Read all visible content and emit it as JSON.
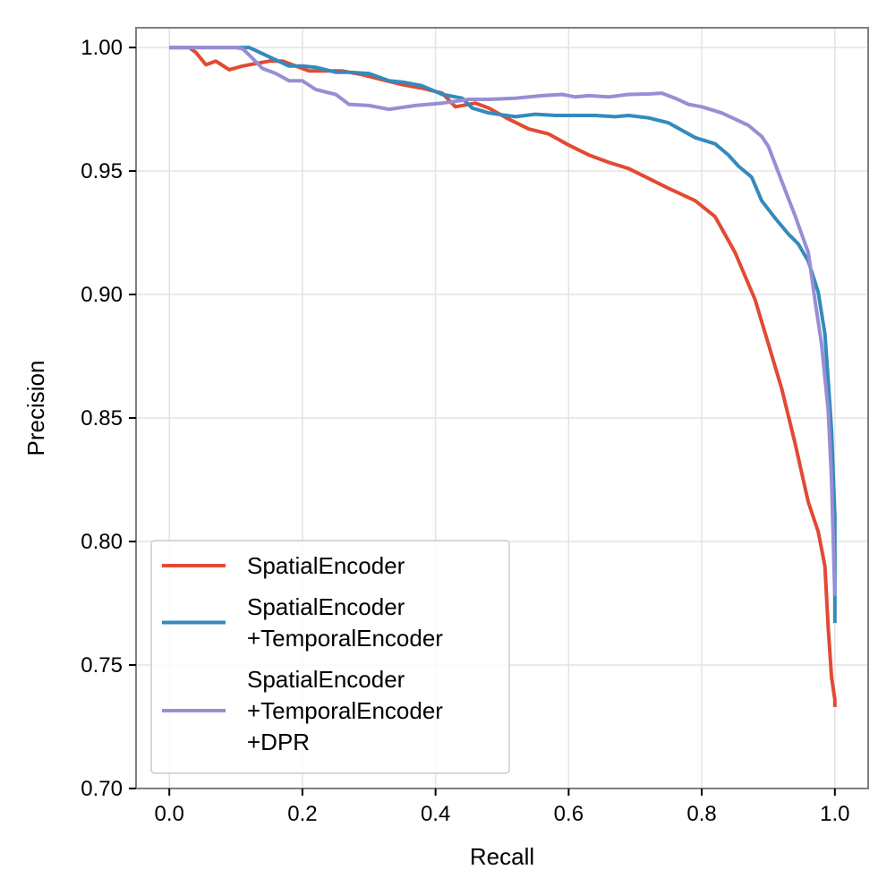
{
  "chart_data": {
    "type": "line",
    "xlabel": "Recall",
    "ylabel": "Precision",
    "xlim": [
      -0.05,
      1.05
    ],
    "ylim": [
      0.7,
      1.008
    ],
    "xticks": [
      0.0,
      0.2,
      0.4,
      0.6,
      0.8,
      1.0
    ],
    "xtick_labels": [
      "0.0",
      "0.2",
      "0.4",
      "0.6",
      "0.8",
      "1.0"
    ],
    "yticks": [
      0.7,
      0.75,
      0.8,
      0.85,
      0.9,
      0.95,
      1.0
    ],
    "ytick_labels": [
      "0.70",
      "0.75",
      "0.80",
      "0.85",
      "0.90",
      "0.95",
      "1.00"
    ],
    "grid": true,
    "legend_position": "lower-left",
    "series": [
      {
        "name": "SpatialEncoder",
        "legend_lines": [
          "SpatialEncoder"
        ],
        "color": "#E24A33",
        "x": [
          0.0,
          0.03,
          0.04,
          0.055,
          0.07,
          0.09,
          0.11,
          0.13,
          0.15,
          0.17,
          0.19,
          0.21,
          0.23,
          0.26,
          0.29,
          0.32,
          0.35,
          0.38,
          0.41,
          0.43,
          0.46,
          0.48,
          0.51,
          0.54,
          0.57,
          0.6,
          0.63,
          0.66,
          0.69,
          0.72,
          0.75,
          0.79,
          0.82,
          0.85,
          0.88,
          0.9,
          0.92,
          0.94,
          0.96,
          0.975,
          0.985,
          0.99,
          0.995,
          1.0,
          1.0
        ],
        "y": [
          1.0,
          1.0,
          0.998,
          0.993,
          0.9945,
          0.991,
          0.9925,
          0.9935,
          0.9945,
          0.9945,
          0.9925,
          0.9905,
          0.9905,
          0.9905,
          0.989,
          0.987,
          0.985,
          0.9835,
          0.9815,
          0.976,
          0.9775,
          0.9755,
          0.971,
          0.967,
          0.965,
          0.9605,
          0.9565,
          0.9535,
          0.951,
          0.947,
          0.943,
          0.938,
          0.9315,
          0.917,
          0.898,
          0.88,
          0.862,
          0.84,
          0.816,
          0.804,
          0.79,
          0.765,
          0.745,
          0.736,
          0.733
        ]
      },
      {
        "name": "SpatialEncoder +TemporalEncoder",
        "legend_lines": [
          "SpatialEncoder",
          "+TemporalEncoder"
        ],
        "color": "#348ABD",
        "x": [
          0.0,
          0.03,
          0.06,
          0.09,
          0.12,
          0.14,
          0.16,
          0.18,
          0.2,
          0.22,
          0.25,
          0.27,
          0.3,
          0.33,
          0.35,
          0.38,
          0.41,
          0.44,
          0.455,
          0.48,
          0.52,
          0.55,
          0.58,
          0.6,
          0.62,
          0.64,
          0.67,
          0.69,
          0.72,
          0.75,
          0.77,
          0.79,
          0.82,
          0.84,
          0.855,
          0.875,
          0.89,
          0.91,
          0.93,
          0.945,
          0.96,
          0.975,
          0.985,
          0.99,
          0.995,
          1.0,
          1.0
        ],
        "y": [
          1.0,
          1.0,
          1.0,
          1.0,
          1.0,
          0.9975,
          0.995,
          0.9925,
          0.9925,
          0.992,
          0.99,
          0.99,
          0.9895,
          0.9865,
          0.986,
          0.9845,
          0.981,
          0.9795,
          0.9755,
          0.9735,
          0.972,
          0.973,
          0.9725,
          0.9725,
          0.9725,
          0.9725,
          0.972,
          0.9725,
          0.9715,
          0.9695,
          0.9665,
          0.9635,
          0.961,
          0.9565,
          0.952,
          0.9475,
          0.938,
          0.931,
          0.9245,
          0.9205,
          0.9135,
          0.901,
          0.884,
          0.865,
          0.845,
          0.81,
          0.767
        ]
      },
      {
        "name": "SpatialEncoder +TemporalEncoder +DPR",
        "legend_lines": [
          "SpatialEncoder",
          "+TemporalEncoder",
          "+DPR"
        ],
        "color": "#988ED5",
        "x": [
          0.0,
          0.03,
          0.06,
          0.09,
          0.1,
          0.11,
          0.12,
          0.14,
          0.16,
          0.18,
          0.2,
          0.22,
          0.25,
          0.27,
          0.3,
          0.33,
          0.37,
          0.41,
          0.45,
          0.48,
          0.52,
          0.56,
          0.59,
          0.61,
          0.63,
          0.66,
          0.69,
          0.72,
          0.74,
          0.76,
          0.78,
          0.8,
          0.83,
          0.85,
          0.87,
          0.89,
          0.9,
          0.92,
          0.94,
          0.96,
          0.97,
          0.98,
          0.99,
          0.995,
          1.0
        ],
        "y": [
          1.0,
          1.0,
          1.0,
          1.0,
          1.0,
          0.9995,
          0.997,
          0.9915,
          0.9895,
          0.9865,
          0.9865,
          0.983,
          0.981,
          0.977,
          0.9765,
          0.975,
          0.9765,
          0.9775,
          0.979,
          0.979,
          0.9795,
          0.9805,
          0.981,
          0.98,
          0.9805,
          0.98,
          0.981,
          0.9812,
          0.9815,
          0.9795,
          0.977,
          0.976,
          0.9735,
          0.971,
          0.9685,
          0.964,
          0.96,
          0.946,
          0.932,
          0.917,
          0.898,
          0.88,
          0.853,
          0.825,
          0.778
        ]
      }
    ]
  }
}
